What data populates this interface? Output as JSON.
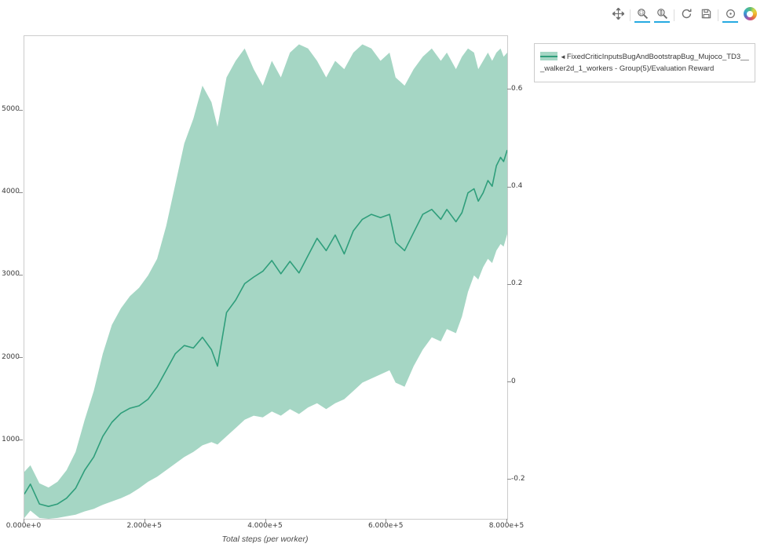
{
  "toolbar": {
    "active_color": "#26aae1",
    "tools": [
      {
        "name": "pan",
        "active": false
      },
      {
        "name": "separator"
      },
      {
        "name": "box-zoom",
        "active": true
      },
      {
        "name": "wheel-zoom",
        "active": true
      },
      {
        "name": "separator"
      },
      {
        "name": "reset",
        "active": false
      },
      {
        "name": "save",
        "active": false
      },
      {
        "name": "separator"
      },
      {
        "name": "hover",
        "active": true
      },
      {
        "name": "bokeh-logo",
        "active": false
      }
    ]
  },
  "legend": {
    "collapse_arrow": "◄",
    "label": "FixedCriticInputsBugAndBootstrapBug_Mujoco_TD3___walker2d_1_workers - Group(5)/Evaluation Reward"
  },
  "chart_data": {
    "type": "line",
    "title": "",
    "xlabel": "Total steps (per worker)",
    "ylabel_left": "",
    "ylabel_right": "",
    "grid": false,
    "legend_position": "top-right-outside",
    "xlim": [
      0,
      800000
    ],
    "ylim_left": [
      50,
      5900
    ],
    "ylim_right": [
      -0.28,
      0.71
    ],
    "x_ticks": [
      0,
      200000,
      400000,
      600000,
      800000
    ],
    "x_tick_labels": [
      "0.000e+0",
      "2.000e+5",
      "4.000e+5",
      "6.000e+5",
      "8.000e+5"
    ],
    "left_ticks": [
      1000,
      2000,
      3000,
      4000,
      5000
    ],
    "left_tick_labels": [
      "1000",
      "2000",
      "3000",
      "4000",
      "5000"
    ],
    "right_ticks": [
      -0.2,
      0,
      0.2,
      0.4,
      0.6
    ],
    "right_tick_labels": [
      "-0.2",
      "0",
      "0.2",
      "0.4",
      "0.6"
    ],
    "series": [
      {
        "name": "FixedCriticInputsBugAndBootstrapBug_Mujoco_TD3___walker2d_1_workers - Group(5)/Evaluation Reward",
        "color": "#2f9e7b",
        "band_color": "#a5d6c4",
        "x": [
          0,
          10000,
          25000,
          40000,
          55000,
          70000,
          85000,
          100000,
          115000,
          130000,
          145000,
          160000,
          175000,
          190000,
          205000,
          220000,
          235000,
          250000,
          265000,
          280000,
          295000,
          310000,
          320000,
          335000,
          350000,
          365000,
          380000,
          395000,
          410000,
          425000,
          440000,
          455000,
          470000,
          485000,
          500000,
          515000,
          530000,
          545000,
          560000,
          575000,
          590000,
          605000,
          615000,
          630000,
          645000,
          660000,
          675000,
          690000,
          700000,
          715000,
          725000,
          735000,
          745000,
          752000,
          760000,
          768000,
          775000,
          782000,
          789000,
          794000,
          800000
        ],
        "mean": [
          350,
          470,
          230,
          200,
          230,
          300,
          420,
          640,
          800,
          1050,
          1220,
          1330,
          1390,
          1420,
          1500,
          1650,
          1850,
          2050,
          2150,
          2120,
          2250,
          2100,
          1900,
          2550,
          2700,
          2900,
          2980,
          3050,
          3180,
          3020,
          3170,
          3030,
          3240,
          3450,
          3300,
          3490,
          3260,
          3540,
          3680,
          3740,
          3700,
          3740,
          3400,
          3300,
          3520,
          3740,
          3800,
          3680,
          3800,
          3650,
          3760,
          4000,
          4050,
          3900,
          4000,
          4150,
          4080,
          4330,
          4430,
          4380,
          4520
        ],
        "lower": [
          60,
          150,
          60,
          50,
          60,
          80,
          100,
          140,
          170,
          220,
          260,
          300,
          350,
          420,
          500,
          560,
          640,
          720,
          800,
          860,
          940,
          980,
          950,
          1050,
          1150,
          1250,
          1300,
          1280,
          1350,
          1300,
          1380,
          1320,
          1400,
          1450,
          1380,
          1450,
          1500,
          1600,
          1700,
          1750,
          1800,
          1850,
          1700,
          1650,
          1900,
          2100,
          2250,
          2200,
          2350,
          2300,
          2500,
          2800,
          3000,
          2950,
          3100,
          3200,
          3150,
          3300,
          3380,
          3350,
          3500
        ],
        "upper": [
          620,
          700,
          480,
          430,
          500,
          640,
          860,
          1250,
          1600,
          2050,
          2400,
          2600,
          2750,
          2850,
          3000,
          3200,
          3600,
          4100,
          4600,
          4900,
          5300,
          5100,
          4800,
          5400,
          5600,
          5750,
          5500,
          5300,
          5600,
          5400,
          5700,
          5800,
          5750,
          5600,
          5400,
          5600,
          5500,
          5700,
          5800,
          5750,
          5600,
          5700,
          5400,
          5300,
          5500,
          5650,
          5750,
          5600,
          5700,
          5500,
          5650,
          5750,
          5700,
          5500,
          5600,
          5700,
          5600,
          5700,
          5750,
          5650,
          5700
        ]
      }
    ]
  }
}
